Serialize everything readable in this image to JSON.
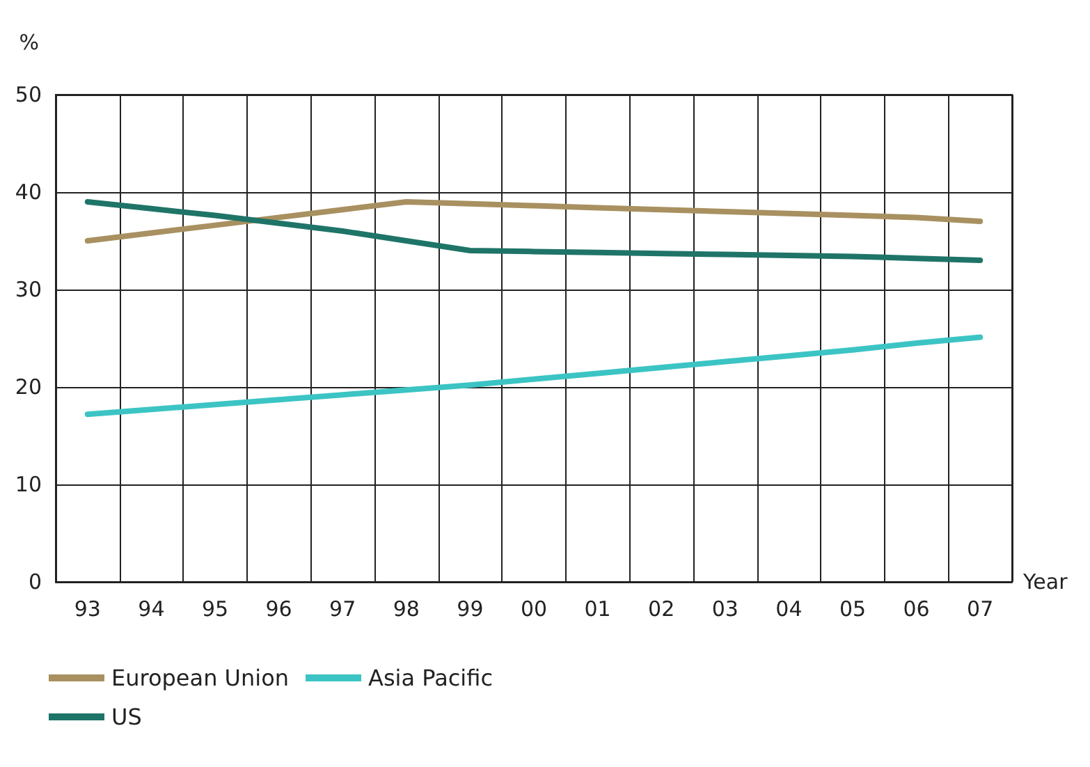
{
  "chart_data": {
    "type": "line",
    "xlabel": "Year",
    "ylabel": "%",
    "categories": [
      "93",
      "94",
      "95",
      "96",
      "97",
      "98",
      "99",
      "00",
      "01",
      "02",
      "03",
      "04",
      "05",
      "06",
      "07"
    ],
    "series": [
      {
        "name": "European Union",
        "color": "#a89060",
        "values": [
          35,
          35.8,
          36.6,
          37.4,
          38.2,
          39,
          38.8,
          38.6,
          38.4,
          38.2,
          38,
          37.8,
          37.6,
          37.4,
          37
        ]
      },
      {
        "name": "US",
        "color": "#1f7468",
        "values": [
          39,
          38.3,
          37.6,
          36.8,
          36,
          35,
          34,
          33.9,
          33.8,
          33.7,
          33.6,
          33.5,
          33.4,
          33.2,
          33
        ]
      },
      {
        "name": "Asia Pacific",
        "color": "#3cc4c4",
        "values": [
          17.2,
          17.7,
          18.2,
          18.7,
          19.2,
          19.7,
          20.2,
          20.8,
          21.4,
          22,
          22.6,
          23.2,
          23.8,
          24.5,
          25.1
        ]
      }
    ],
    "ylim": [
      0,
      50
    ],
    "yticks": [
      0,
      10,
      20,
      30,
      40,
      50
    ],
    "grid": true,
    "legend": "bottom left",
    "marker": "none",
    "line_style": "solid"
  }
}
